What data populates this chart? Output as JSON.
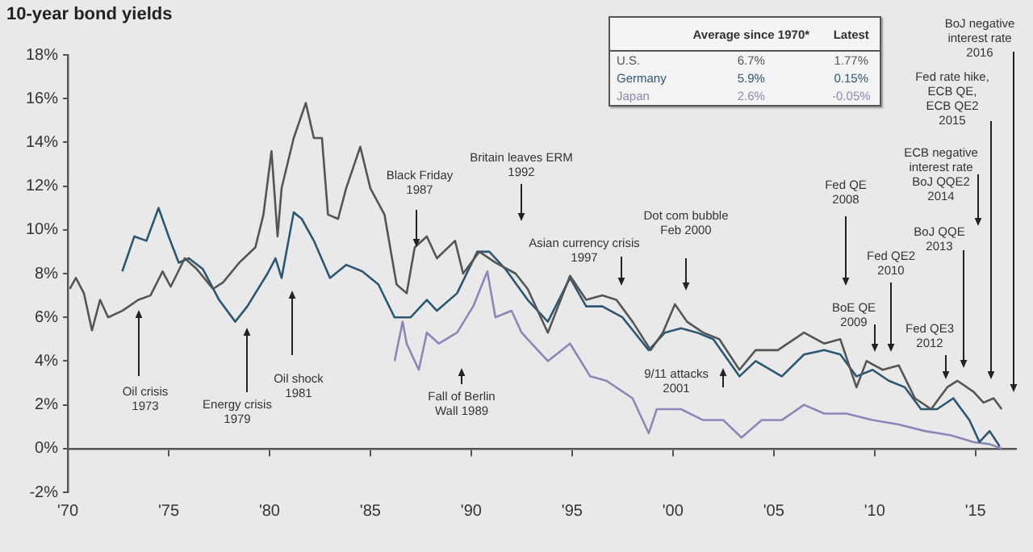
{
  "chart_data": {
    "type": "line",
    "title": "10-year bond yields",
    "xlim": [
      1970,
      2017
    ],
    "xticks": [
      {
        "value": 1970,
        "label": "'70"
      },
      {
        "value": 1975,
        "label": "'75"
      },
      {
        "value": 1980,
        "label": "'80"
      },
      {
        "value": 1985,
        "label": "'85"
      },
      {
        "value": 1990,
        "label": "'90"
      },
      {
        "value": 1995,
        "label": "'95"
      },
      {
        "value": 2000,
        "label": "'00"
      },
      {
        "value": 2005,
        "label": "'05"
      },
      {
        "value": 2010,
        "label": "'10"
      },
      {
        "value": 2015,
        "label": "'15"
      }
    ],
    "ylim": [
      -2,
      18
    ],
    "yticks": [
      {
        "value": -2,
        "label": "-2%"
      },
      {
        "value": 0,
        "label": "0%"
      },
      {
        "value": 2,
        "label": "2%"
      },
      {
        "value": 4,
        "label": "4%"
      },
      {
        "value": 6,
        "label": "6%"
      },
      {
        "value": 8,
        "label": "8%"
      },
      {
        "value": 10,
        "label": "10%"
      },
      {
        "value": 12,
        "label": "12%"
      },
      {
        "value": 14,
        "label": "14%"
      },
      {
        "value": 16,
        "label": "16%"
      },
      {
        "value": 18,
        "label": "18%"
      }
    ],
    "legend": "top",
    "series": [
      {
        "name": "U.S.",
        "color": "#555555",
        "x": [
          1970.1,
          1970.4,
          1970.8,
          1971.2,
          1971.6,
          1972.0,
          1972.7,
          1973.5,
          1974.1,
          1974.7,
          1975.1,
          1975.8,
          1976.4,
          1977.2,
          1977.7,
          1978.5,
          1979.3,
          1979.7,
          1980.1,
          1980.4,
          1980.6,
          1981.2,
          1981.8,
          1982.2,
          1982.6,
          1982.9,
          1983.4,
          1983.8,
          1984.5,
          1985.0,
          1985.7,
          1986.3,
          1986.8,
          1987.2,
          1987.8,
          1988.3,
          1989.2,
          1989.6,
          1990.4,
          1991.2,
          1992.2,
          1992.8,
          1993.8,
          1994.9,
          1995.7,
          1996.5,
          1997.2,
          1998.0,
          1998.9,
          1999.5,
          2000.1,
          2000.7,
          2001.5,
          2002.3,
          2003.3,
          2004.1,
          2005.2,
          2006.5,
          2007.5,
          2008.3,
          2009.1,
          2009.6,
          2010.4,
          2011.2,
          2012.0,
          2012.8,
          2013.6,
          2014.1,
          2014.9,
          2015.4,
          2015.9,
          2016.3
        ],
        "values": [
          7.3,
          7.8,
          7.1,
          5.4,
          6.8,
          6.0,
          6.3,
          6.8,
          7.0,
          8.1,
          7.4,
          8.7,
          8.2,
          7.3,
          7.6,
          8.5,
          9.2,
          10.7,
          13.6,
          9.7,
          11.9,
          14.2,
          15.8,
          14.2,
          14.2,
          10.7,
          10.5,
          11.9,
          13.8,
          11.9,
          10.7,
          7.5,
          7.1,
          9.2,
          9.7,
          8.7,
          9.5,
          8.0,
          9.0,
          8.5,
          8.0,
          7.3,
          5.3,
          7.9,
          6.8,
          7.0,
          6.8,
          5.8,
          4.5,
          5.3,
          6.6,
          5.8,
          5.3,
          5.0,
          3.6,
          4.5,
          4.5,
          5.3,
          4.8,
          5.0,
          2.8,
          4.0,
          3.6,
          3.8,
          2.3,
          1.8,
          2.8,
          3.1,
          2.6,
          2.1,
          2.3,
          1.8
        ]
      },
      {
        "name": "Germany",
        "color": "#2b5773",
        "x": [
          1972.7,
          1973.3,
          1973.9,
          1974.5,
          1975.0,
          1975.5,
          1976.0,
          1976.7,
          1977.5,
          1978.3,
          1978.9,
          1979.9,
          1980.3,
          1980.6,
          1981.2,
          1981.6,
          1982.2,
          1983.0,
          1983.8,
          1984.6,
          1985.4,
          1986.2,
          1987.0,
          1987.8,
          1988.3,
          1989.3,
          1990.3,
          1990.9,
          1991.7,
          1992.8,
          1993.8,
          1994.9,
          1995.7,
          1996.5,
          1997.5,
          1998.8,
          1999.6,
          2000.4,
          2001.2,
          2002.0,
          2003.3,
          2004.1,
          2005.4,
          2006.5,
          2007.5,
          2008.3,
          2009.1,
          2009.9,
          2010.7,
          2011.5,
          2012.3,
          2013.1,
          2013.9,
          2014.7,
          2015.2,
          2015.7,
          2016.2
        ],
        "values": [
          8.1,
          9.7,
          9.5,
          11.0,
          9.7,
          8.5,
          8.7,
          8.2,
          6.8,
          5.8,
          6.5,
          8.0,
          8.7,
          7.8,
          10.8,
          10.5,
          9.5,
          7.8,
          8.4,
          8.1,
          7.5,
          6.0,
          6.0,
          6.8,
          6.3,
          7.1,
          9.0,
          9.0,
          8.2,
          6.8,
          5.8,
          7.8,
          6.5,
          6.5,
          6.0,
          4.5,
          5.3,
          5.5,
          5.3,
          5.0,
          3.3,
          4.0,
          3.3,
          4.3,
          4.5,
          4.3,
          3.3,
          3.6,
          3.1,
          2.8,
          1.8,
          1.8,
          2.3,
          1.3,
          0.3,
          0.8,
          0.1
        ]
      },
      {
        "name": "Japan",
        "color": "#8c87b8",
        "x": [
          1986.2,
          1986.6,
          1986.8,
          1987.4,
          1987.8,
          1988.4,
          1989.3,
          1990.1,
          1990.8,
          1991.2,
          1992.0,
          1992.5,
          1992.8,
          1993.8,
          1994.9,
          1995.9,
          1996.7,
          1998.0,
          1998.8,
          1999.2,
          2000.4,
          2001.5,
          2002.5,
          2003.4,
          2004.4,
          2005.4,
          2006.5,
          2007.5,
          2008.6,
          2009.9,
          2011.2,
          2012.5,
          2013.8,
          2014.9,
          2015.7,
          2016.3
        ],
        "values": [
          4.0,
          5.8,
          4.8,
          3.6,
          5.3,
          4.8,
          5.3,
          6.5,
          8.1,
          6.0,
          6.3,
          5.3,
          5.0,
          4.0,
          4.8,
          3.3,
          3.1,
          2.3,
          0.7,
          1.8,
          1.8,
          1.3,
          1.3,
          0.5,
          1.3,
          1.3,
          2.0,
          1.6,
          1.6,
          1.3,
          1.1,
          0.8,
          0.6,
          0.3,
          0.2,
          0.0
        ]
      }
    ],
    "annotations": [
      "Average since 1970*",
      "Latest",
      "6.7%",
      "1.77%",
      "5.9%",
      "0.15%",
      "2.6%",
      "-0.05%",
      "Oil crisis\n1973",
      "Energy crisis\n1979",
      "Oil shock\n1981",
      "Black Friday\n1987",
      "Fall of Berlin\nWall 1989",
      "Britain leaves ERM\n1992",
      "Asian currency crisis\n1997",
      "Dot com bubble\nFeb 2000",
      "9/11 attacks\n2001",
      "Fed QE\n2008",
      "BoE QE\n2009",
      "Fed QE2\n2010",
      "Fed QE3\n2012",
      "BoJ QQE\n2013",
      "ECB negative\ninterest rate\nBoJ QQE2\n2014",
      "Fed rate hike,\nECB QE,\nECB QE2\n2015",
      "BoJ negative\ninterest rate\n2016"
    ]
  }
}
